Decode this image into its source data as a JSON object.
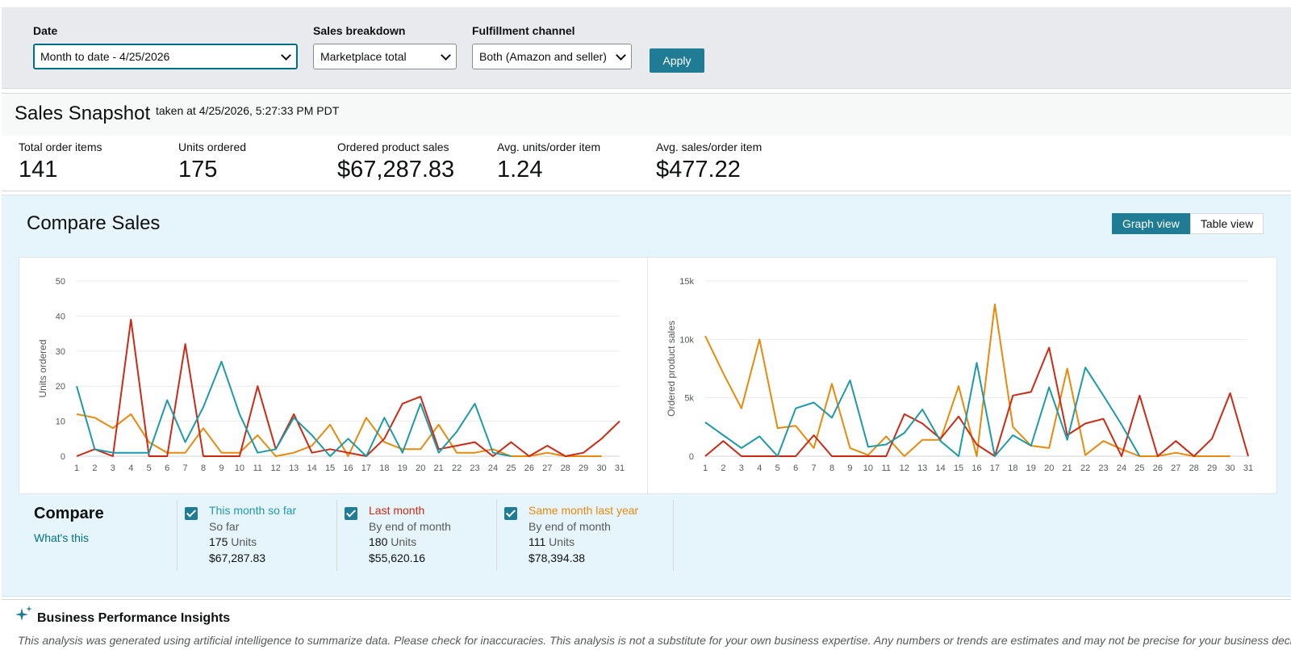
{
  "filters": {
    "date": {
      "label": "Date",
      "value": "Month to date - 4/25/2026"
    },
    "breakdown": {
      "label": "Sales breakdown",
      "value": "Marketplace total"
    },
    "channel": {
      "label": "Fulfillment channel",
      "value": "Both (Amazon and seller)"
    },
    "apply_label": "Apply"
  },
  "snapshot": {
    "title": "Sales Snapshot",
    "taken": "taken at 4/25/2026, 5:27:33 PM PDT",
    "metrics": [
      {
        "label": "Total order items",
        "value": "141"
      },
      {
        "label": "Units ordered",
        "value": "175"
      },
      {
        "label": "Ordered product sales",
        "value": "$67,287.83"
      },
      {
        "label": "Avg. units/order item",
        "value": "1.24"
      },
      {
        "label": "Avg. sales/order item",
        "value": "$477.22"
      }
    ]
  },
  "compare_sales": {
    "title": "Compare Sales",
    "graph_view_label": "Graph view",
    "table_view_label": "Table view"
  },
  "compare": {
    "heading": "Compare",
    "whats_this": "What's this",
    "series": [
      {
        "name": "This month so far",
        "sub": "So far",
        "units": "175",
        "units_label": "Units",
        "sales": "$67,287.83",
        "color": "#1d9aa7"
      },
      {
        "name": "Last month",
        "sub": "By end of month",
        "units": "180",
        "units_label": "Units",
        "sales": "$55,620.16",
        "color": "#cc2a14"
      },
      {
        "name": "Same month last year",
        "sub": "By end of month",
        "units": "111",
        "units_label": "Units",
        "sales": "$78,394.38",
        "color": "#e8890c"
      }
    ]
  },
  "insights": {
    "title": "Business Performance Insights",
    "text": "This analysis was generated using artificial intelligence to summarize data. Please check for inaccuracies. This analysis is not a substitute for your own business expertise. Any numbers or trends are estimates and may not be precise for your business decisions."
  },
  "chart_data": [
    {
      "type": "line",
      "ylabel": "Units ordered",
      "xlabel": "",
      "x": [
        1,
        2,
        3,
        4,
        5,
        6,
        7,
        8,
        9,
        10,
        11,
        12,
        13,
        14,
        15,
        16,
        17,
        18,
        19,
        20,
        21,
        22,
        23,
        24,
        25,
        26,
        27,
        28,
        29,
        30,
        31
      ],
      "ylim": [
        0,
        50
      ],
      "yticks": [
        0,
        10,
        20,
        30,
        40,
        50
      ],
      "ytick_labels": [
        "0",
        "10",
        "20",
        "30",
        "40",
        "50"
      ],
      "grid": true,
      "series": [
        {
          "name": "Same month last year",
          "color": "#e8890c",
          "values": [
            12,
            11,
            8,
            12,
            4,
            1,
            1,
            8,
            1,
            1,
            6,
            0,
            1,
            3,
            9,
            0,
            11,
            4,
            2,
            2,
            9,
            1,
            1,
            2,
            0,
            0,
            1,
            0,
            0,
            0,
            null
          ]
        },
        {
          "name": "Last month",
          "color": "#cc2a14",
          "values": [
            0,
            2,
            0,
            39,
            0,
            0,
            32,
            0,
            0,
            0,
            20,
            2,
            12,
            1,
            2,
            1,
            0,
            5,
            15,
            17,
            2,
            3,
            4,
            0,
            4,
            0,
            3,
            0,
            1,
            5,
            10
          ]
        },
        {
          "name": "This month so far",
          "color": "#1d9aa7",
          "values": [
            20,
            2,
            1,
            1,
            1,
            16,
            4,
            14,
            27,
            12,
            1,
            2,
            11,
            6,
            0,
            5,
            0,
            11,
            1,
            15,
            1,
            7,
            15,
            1,
            0,
            null,
            null,
            null,
            null,
            null,
            null
          ]
        }
      ]
    },
    {
      "type": "line",
      "ylabel": "Ordered product sales",
      "xlabel": "",
      "x": [
        1,
        2,
        3,
        4,
        5,
        6,
        7,
        8,
        9,
        10,
        11,
        12,
        13,
        14,
        15,
        16,
        17,
        18,
        19,
        20,
        21,
        22,
        23,
        24,
        25,
        26,
        27,
        28,
        29,
        30,
        31
      ],
      "ylim": [
        0,
        15000
      ],
      "yticks": [
        0,
        5000,
        10000,
        15000
      ],
      "ytick_labels": [
        "0",
        "5k",
        "10k",
        "15k"
      ],
      "grid": true,
      "series": [
        {
          "name": "Same month last year",
          "color": "#e8890c",
          "values": [
            10300,
            7100,
            4100,
            10000,
            2400,
            2600,
            700,
            6200,
            700,
            100,
            1700,
            0,
            1400,
            1400,
            6000,
            0,
            13000,
            2500,
            900,
            700,
            7500,
            100,
            1300,
            600,
            0,
            0,
            300,
            0,
            0,
            0,
            null
          ]
        },
        {
          "name": "Last month",
          "color": "#cc2a14",
          "values": [
            0,
            1300,
            0,
            0,
            0,
            0,
            1800,
            0,
            0,
            0,
            0,
            3600,
            2800,
            1500,
            3400,
            1000,
            0,
            5200,
            5500,
            9300,
            1800,
            2800,
            3200,
            0,
            5200,
            0,
            1300,
            0,
            1500,
            5400,
            0
          ]
        },
        {
          "name": "This month so far",
          "color": "#1d9aa7",
          "values": [
            2900,
            1800,
            700,
            1700,
            0,
            4100,
            4600,
            3300,
            6500,
            800,
            1000,
            2000,
            4000,
            1300,
            0,
            8000,
            0,
            1800,
            900,
            5900,
            1400,
            7600,
            5200,
            2700,
            0,
            null,
            null,
            null,
            null,
            null,
            null
          ]
        }
      ]
    }
  ]
}
